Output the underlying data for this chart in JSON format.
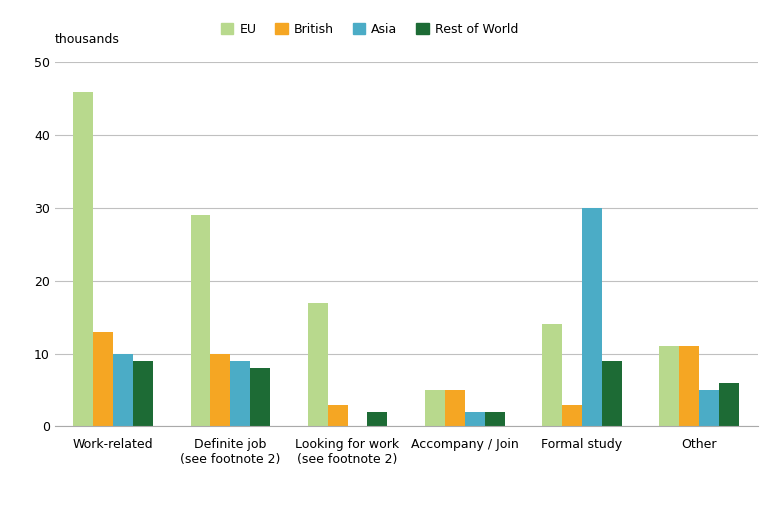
{
  "categories": [
    "Work-related",
    "Definite job\n(see footnote 2)",
    "Looking for work\n(see footnote 2)",
    "Accompany / Join",
    "Formal study",
    "Other"
  ],
  "series": {
    "EU": [
      46,
      29,
      17,
      5,
      14,
      11
    ],
    "British": [
      13,
      10,
      3,
      5,
      3,
      11
    ],
    "Asia": [
      10,
      9,
      0,
      2,
      30,
      5
    ],
    "Rest of World": [
      9,
      8,
      2,
      2,
      9,
      6
    ]
  },
  "colors": {
    "EU": "#b8d98d",
    "British": "#f5a623",
    "Asia": "#4bacc6",
    "Rest of World": "#1d6b35"
  },
  "ylabel": "thousands",
  "ylim": [
    0,
    50
  ],
  "yticks": [
    0,
    10,
    20,
    30,
    40,
    50
  ],
  "bar_width": 0.17,
  "background_color": "#ffffff",
  "grid_color": "#c0c0c0",
  "legend_order": [
    "EU",
    "British",
    "Asia",
    "Rest of World"
  ],
  "tick_fontsize": 9,
  "label_fontsize": 9
}
